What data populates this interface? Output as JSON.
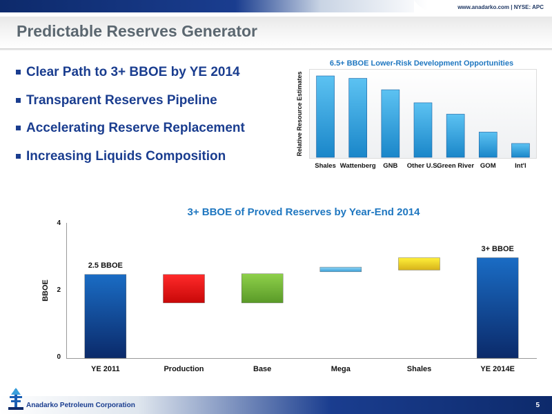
{
  "header": {
    "url_text": "www.anadarko.com | NYSE: APC"
  },
  "slide": {
    "title": "Predictable Reserves Generator",
    "bullets": [
      "Clear Path to 3+ BBOE by YE 2014",
      "Transparent Reserves Pipeline",
      "Accelerating Reserve Replacement",
      "Increasing Liquids Composition"
    ]
  },
  "chart_data": [
    {
      "type": "bar",
      "title": "6.5+ BBOE Lower-Risk Development Opportunities",
      "ylabel": "Relative Resource Estimates",
      "xlabel": "",
      "categories": [
        "Shales",
        "Wattenberg",
        "GNB",
        "Other U.S.",
        "Green River",
        "GOM",
        "Int'l"
      ],
      "values": [
        100,
        97,
        83,
        67,
        53,
        31,
        17
      ],
      "ylim": [
        0,
        100
      ],
      "grid": false,
      "colors": {
        "bar": "#3aa0dc"
      }
    },
    {
      "type": "bar",
      "subtype": "waterfall",
      "title": "3+ BBOE of Proved Reserves by Year-End 2014",
      "ylabel": "BBOE",
      "xlabel": "",
      "categories": [
        "YE 2011",
        "Production",
        "Base",
        "Mega",
        "Shales",
        "YE 2014E"
      ],
      "bars": [
        {
          "category": "YE 2011",
          "low": 0,
          "high": 2.5,
          "label": "2.5 BBOE",
          "color": "#1a5fb4"
        },
        {
          "category": "Production",
          "low": 1.65,
          "high": 2.5,
          "label": "",
          "color": "#e81010"
        },
        {
          "category": "Base",
          "low": 1.65,
          "high": 2.52,
          "label": "",
          "color": "#72b832"
        },
        {
          "category": "Mega",
          "low": 2.58,
          "high": 2.72,
          "label": "",
          "color": "#58b8ea"
        },
        {
          "category": "Shales",
          "low": 2.63,
          "high": 3.0,
          "label": "",
          "color": "#ecd22a"
        },
        {
          "category": "YE 2014E",
          "low": 0,
          "high": 3.0,
          "label": "3+ BBOE",
          "color": "#1a5fb4"
        }
      ],
      "ylim": [
        0,
        4
      ],
      "yticks": [
        "0",
        "2",
        "4"
      ],
      "grid": false
    }
  ],
  "footer": {
    "company": "Anadarko Petroleum Corporation",
    "page_number": "5"
  },
  "colors": {
    "accent": "#1a3d8f",
    "chart_title": "#1f77c0",
    "title_text": "#5b6770"
  }
}
